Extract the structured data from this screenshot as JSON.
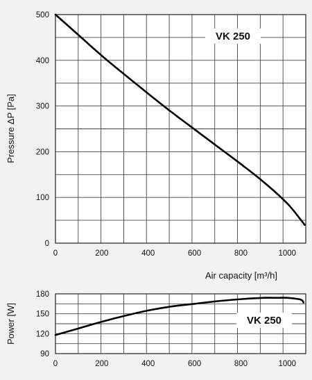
{
  "chart_data": [
    {
      "type": "line",
      "annotation": "VK 250",
      "ylabel": "Pressure ΔP [Pa]",
      "xlabel": "Air capacity [m³/h]",
      "xlim": [
        0,
        1080
      ],
      "ylim": [
        0,
        500
      ],
      "x_ticks": [
        "0",
        "200",
        "400",
        "600",
        "800",
        "1000"
      ],
      "y_ticks": [
        "0",
        "100",
        "200",
        "300",
        "400",
        "500"
      ],
      "grid": true,
      "series": [
        {
          "x": [
            0,
            100,
            200,
            300,
            400,
            500,
            600,
            700,
            800,
            900,
            1000,
            1060,
            1075
          ],
          "values": [
            500,
            455,
            410,
            368,
            327,
            287,
            249,
            211,
            173,
            133,
            87,
            50,
            40
          ]
        }
      ]
    },
    {
      "type": "line",
      "annotation": "VK 250",
      "ylabel": "Power [W]",
      "xlabel": "",
      "xlim": [
        0,
        1080
      ],
      "ylim": [
        90,
        180
      ],
      "x_ticks": [
        "0",
        "200",
        "400",
        "600",
        "800",
        "1000"
      ],
      "y_ticks": [
        "90",
        "120",
        "150",
        "180"
      ],
      "grid": true,
      "series": [
        {
          "x": [
            0,
            100,
            200,
            300,
            400,
            500,
            600,
            700,
            800,
            900,
            950,
            1000,
            1050,
            1065,
            1070
          ],
          "values": [
            118,
            128,
            138,
            147,
            155,
            161,
            165,
            169,
            172,
            174,
            174,
            174,
            172,
            170,
            167
          ]
        }
      ]
    }
  ]
}
